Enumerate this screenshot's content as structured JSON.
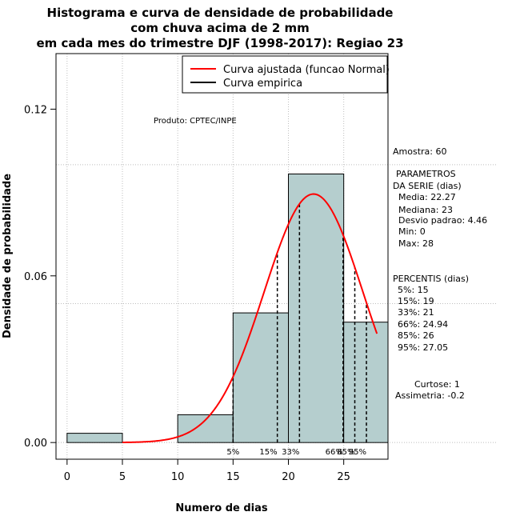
{
  "chart_data": {
    "type": "bar",
    "title_lines": [
      "Histograma e curva de densidade de probabilidade",
      "com chuva acima de 2 mm",
      "em cada mes do trimestre DJF (1998-2017): Regiao 23"
    ],
    "xlabel": "Numero de dias",
    "ylabel": "Densidade de probabilidade",
    "xlim": [
      -1,
      29
    ],
    "ylim": [
      -0.006,
      0.14
    ],
    "x_ticks": [
      0,
      5,
      10,
      15,
      20,
      25
    ],
    "y_ticks": [
      0.0,
      0.06,
      0.12
    ],
    "y_tick_labels": [
      "0.00",
      "0.06",
      "0.12"
    ],
    "bins": [
      {
        "x0": 0,
        "x1": 5,
        "density": 0.00333
      },
      {
        "x0": 5,
        "x1": 10,
        "density": 0.0
      },
      {
        "x0": 10,
        "x1": 15,
        "density": 0.01
      },
      {
        "x0": 15,
        "x1": 20,
        "density": 0.04667
      },
      {
        "x0": 20,
        "x1": 25,
        "density": 0.09667
      },
      {
        "x0": 25,
        "x1": 29,
        "density": 0.04333
      }
    ],
    "normal_fit": {
      "mean": 22.27,
      "sd": 4.46,
      "x_from": 5,
      "x_to": 28
    },
    "percentile_lines": [
      {
        "label": "5%",
        "x": 15
      },
      {
        "label": "15%",
        "x": 19
      },
      {
        "label": "33%",
        "x": 21
      },
      {
        "label": "66%",
        "x": 24.94
      },
      {
        "label": "85%",
        "x": 26
      },
      {
        "label": "95%",
        "x": 27.05
      }
    ],
    "grid": true,
    "legend": {
      "position": "top-right",
      "entries": [
        {
          "label": "Curva ajustada (funcao Normal)",
          "color": "#ff0000"
        },
        {
          "label": "Curva empirica",
          "color": "#000000"
        }
      ]
    },
    "annotation": "Produto: CPTEC/INPE",
    "colors": {
      "bar_fill": "#b5cece",
      "curve": "#ff0000",
      "grid": "#bebebe"
    }
  },
  "stats": {
    "amostra": "Amostra: 60",
    "param_title_1": "PARAMETROS",
    "param_title_2": "DA SERIE (dias)",
    "media": "Media: 22.27",
    "mediana": "Mediana: 23",
    "desvio": "Desvio padrao: 4.46",
    "min": "Min: 0",
    "max": "Max: 28",
    "percentis_title": "PERCENTIS (dias)",
    "p5": "5%: 15",
    "p15": "15%: 19",
    "p33": "33%: 21",
    "p66": "66%: 24.94",
    "p85": "85%: 26",
    "p95": "95%: 27.05",
    "curtose": "Curtose: 1",
    "assimetria": "Assimetria: -0.2"
  }
}
